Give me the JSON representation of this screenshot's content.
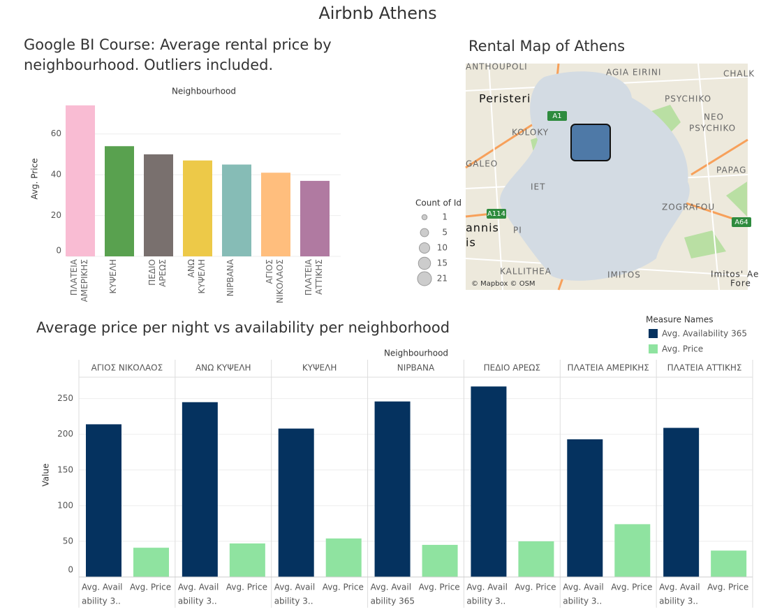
{
  "title": "Airbnb Athens",
  "chart_data": [
    {
      "type": "bar",
      "title": "Google BI Course: Average rental price by neighbourhood. Outliers included.",
      "x_header": "Neighbourhood",
      "y_label": "Avg. Price",
      "categories": [
        "ΠΛΑΤΕΙΑ ΑΜΕΡΙΚΗΣ",
        "ΚΥΨΕΛΗ",
        "ΠΕΔΙΟ ΑΡΕΩΣ",
        "ΑΝΩ ΚΥΨΕΛΗ",
        "ΝΙΡΒΑΝΑ",
        "ΑΓΙΟΣ ΝΙΚΟΛΑΟΣ",
        "ΠΛΑΤΕΙΑ ΑΤΤΙΚΗΣ"
      ],
      "values": [
        74,
        54,
        50,
        47,
        45,
        41,
        37
      ],
      "colors": [
        "#f9bcd3",
        "#59a14f",
        "#79706e",
        "#edc948",
        "#86bcb6",
        "#ffbe7d",
        "#b07aa1"
      ],
      "ylim": [
        0,
        76
      ],
      "yticks": [
        0,
        20,
        40,
        60
      ],
      "grid": true
    },
    {
      "type": "grouped_bar",
      "title": "Average price per night vs availability per neighborhood",
      "x_header": "Neighbourhood",
      "y_label": "Value",
      "legend_title": "Measure Names",
      "categories": [
        "ΑΓΙΟΣ ΝΙΚΟΛΑΟΣ",
        "ΑΝΩ ΚΥΨΕΛΗ",
        "ΚΥΨΕΛΗ",
        "ΝΙΡΒΑΝΑ",
        "ΠΕΔΙΟ ΑΡΕΩΣ",
        "ΠΛΑΤΕΙΑ ΑΜΕΡΙΚΗΣ",
        "ΠΛΑΤΕΙΑ ΑΤΤΙΚΗΣ"
      ],
      "series": [
        {
          "name": "Avg. Availability 365",
          "color": "#05325f",
          "values": [
            214,
            245,
            208,
            246,
            267,
            193,
            209
          ]
        },
        {
          "name": "Avg. Price",
          "color": "#8fe3a0",
          "values": [
            41,
            47,
            54,
            45,
            50,
            74,
            37
          ]
        }
      ],
      "measure_labels": [
        [
          "Avg. Avail",
          "ability 3..",
          "Avg. Price"
        ],
        [
          "Avg. Avail",
          "ability 3..",
          "Avg. Price"
        ],
        [
          "Avg. Avail",
          "ability 3..",
          "Avg. Price"
        ],
        [
          "Avg. Avail",
          "ability 365",
          "Avg. Price"
        ],
        [
          "Avg. Avail",
          "ability 3..",
          "Avg. Price"
        ],
        [
          "Avg. Avail",
          "ability 3..",
          "Avg. Price"
        ],
        [
          "Avg. Avail",
          "ability 3..",
          "Avg. Price"
        ]
      ],
      "ylim": [
        0,
        280
      ],
      "yticks": [
        0,
        50,
        100,
        150,
        200,
        250
      ],
      "grid": true
    }
  ],
  "map": {
    "title": "Rental Map of Athens",
    "places": [
      "ANTHOUPOLI",
      "AGIA EIRINI",
      "CHALK",
      "Peristeri",
      "PSYCHIKO",
      "NEO",
      "PSYCHIKO",
      "KOLOKY",
      "GALEO",
      "PAPAG",
      "ZOGRAFOU",
      "annis",
      "is",
      "KALLITHEA",
      "Imitos' Ae",
      "Fore",
      "PI",
      "IET",
      "IMITOS"
    ],
    "roads": [
      "A1",
      "A114",
      "A64"
    ],
    "credit": "© Mapbox © OSM",
    "legend_title": "Count of Id",
    "legend_sizes": [
      1,
      5,
      10,
      15,
      21
    ]
  }
}
